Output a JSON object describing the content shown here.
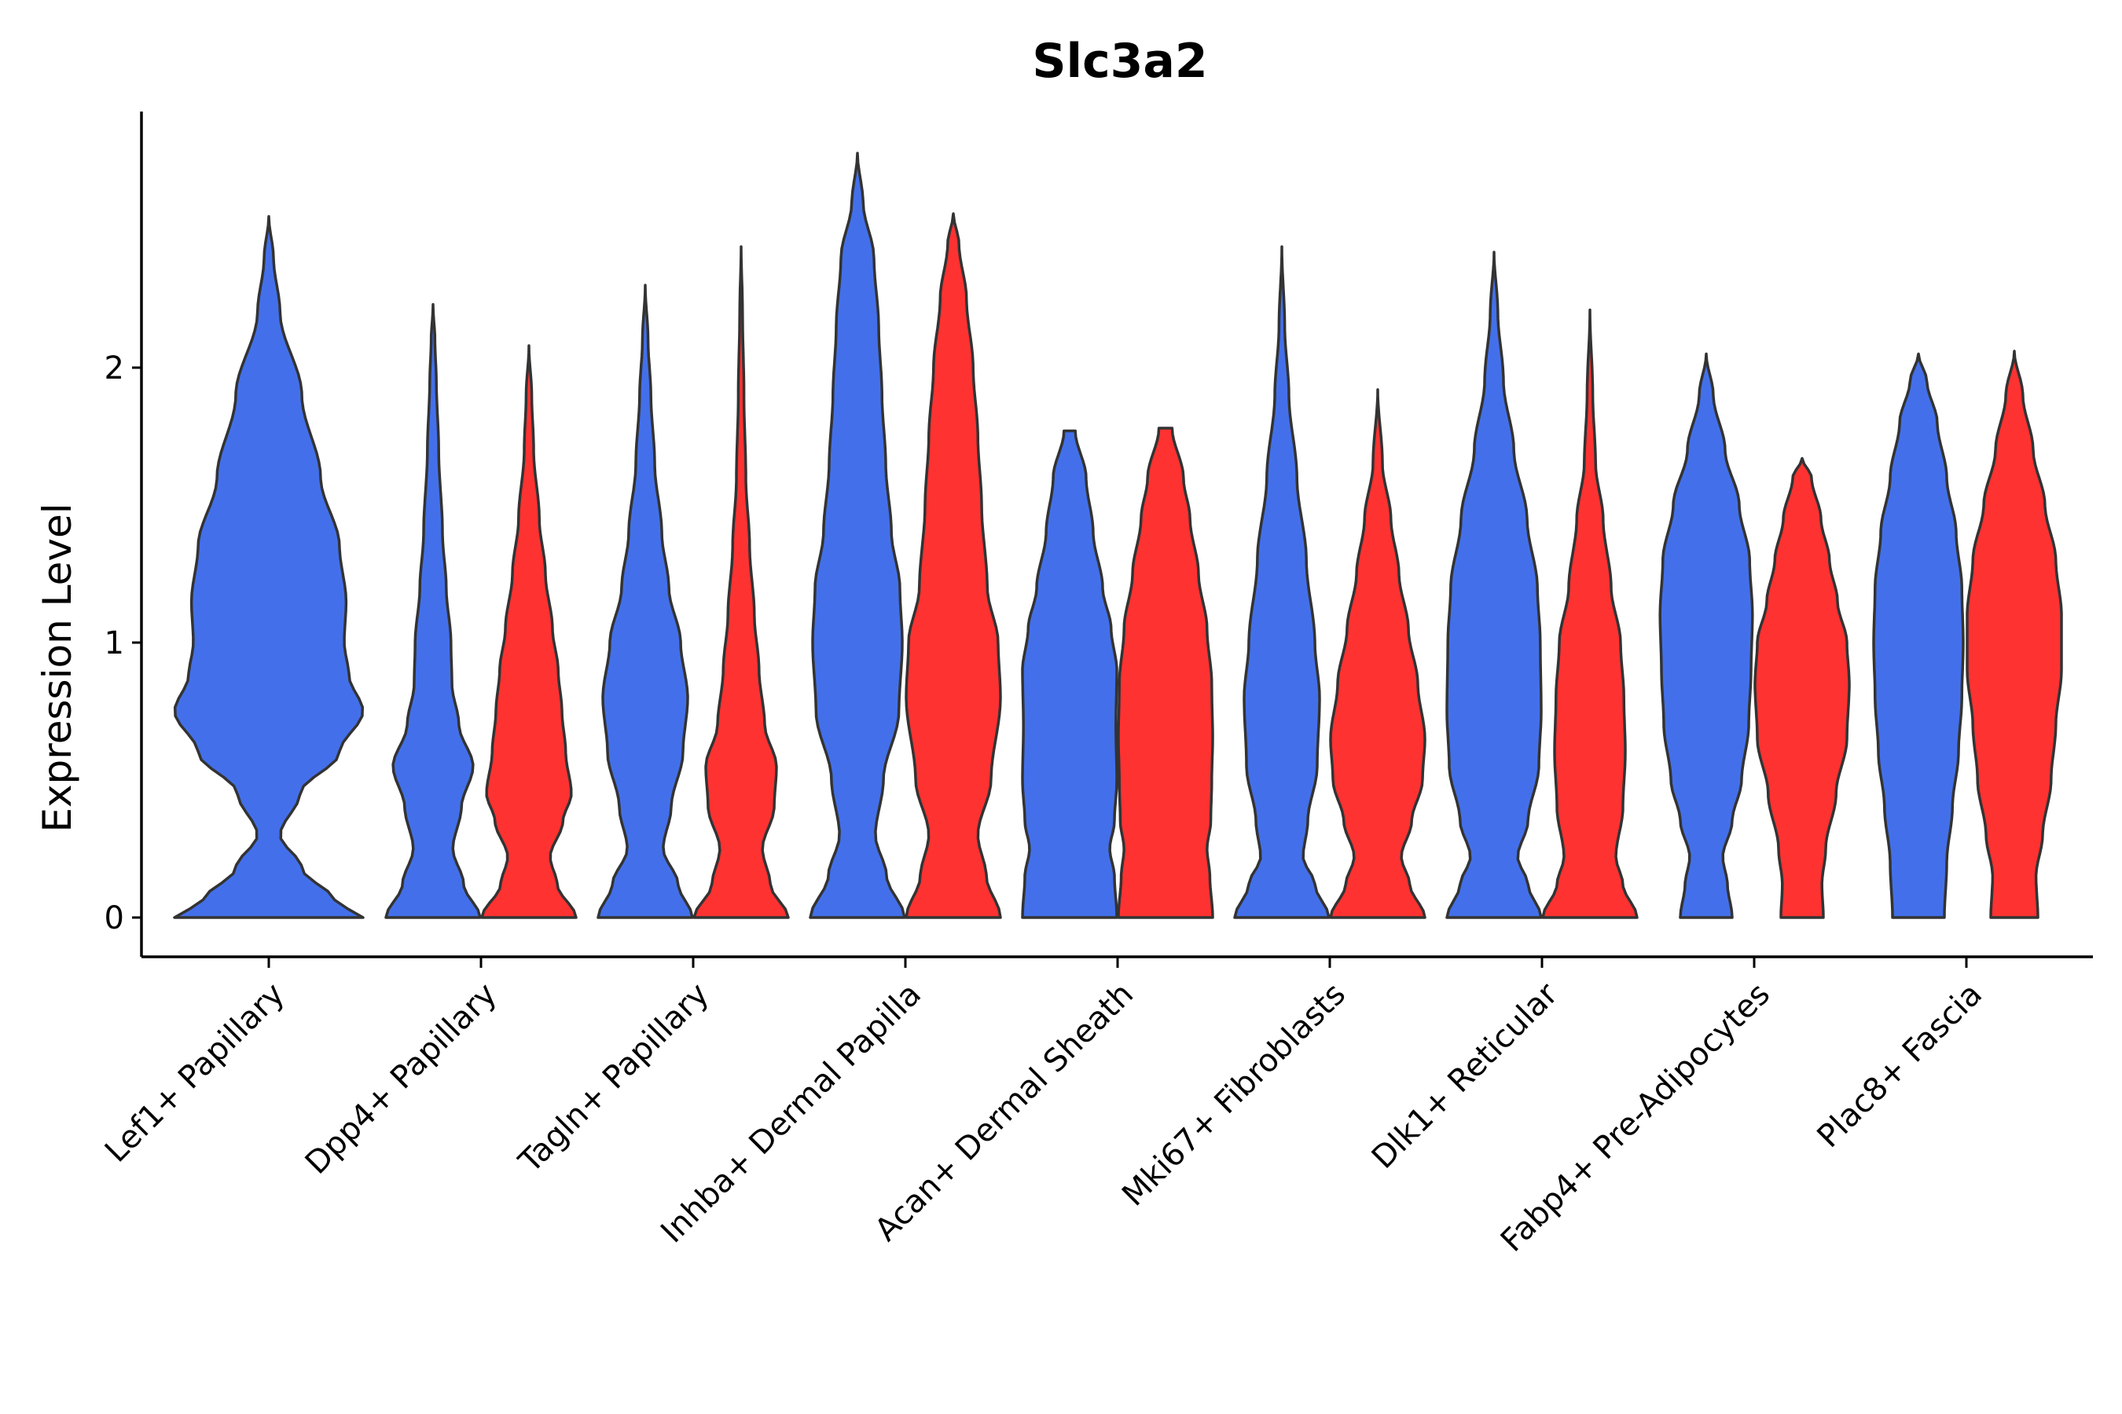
{
  "chart_data": {
    "type": "violin",
    "title": "Slc3a2",
    "xlabel": "",
    "ylabel": "Expression Level",
    "ylim": [
      -0.14,
      2.95
    ],
    "yticks": [
      0,
      1,
      2
    ],
    "legend": "none",
    "colors": {
      "blue": "#4370EA",
      "red": "#FF3232",
      "outline": "#333333"
    },
    "categories": [
      "Lef1+ Papillary",
      "Dpp4+ Papillary",
      "Tagln+ Papillary",
      "Inhba+ Dermal Papilla",
      "Acan+ Dermal Sheath",
      "Mki67+ Fibroblasts",
      "Dlk1+ Reticular",
      "Fabp4+ Pre-Adipocytes",
      "Plac8+ Fascia"
    ],
    "groups": [
      {
        "category_index": 0,
        "color": "blue",
        "max": 2.55,
        "profile": [
          [
            0,
            1.0
          ],
          [
            0.06,
            0.7
          ],
          [
            0.18,
            0.35
          ],
          [
            0.3,
            0.12
          ],
          [
            0.45,
            0.33
          ],
          [
            0.6,
            0.75
          ],
          [
            0.75,
            1.0
          ],
          [
            0.88,
            0.85
          ],
          [
            1.0,
            0.8
          ],
          [
            1.15,
            0.82
          ],
          [
            1.35,
            0.75
          ],
          [
            1.6,
            0.55
          ],
          [
            1.9,
            0.35
          ],
          [
            2.2,
            0.12
          ],
          [
            2.4,
            0.05
          ],
          [
            2.55,
            0.0
          ]
        ]
      },
      {
        "category_index": 1,
        "color": "blue",
        "max": 2.23,
        "profile": [
          [
            0,
            1.0
          ],
          [
            0.12,
            0.65
          ],
          [
            0.25,
            0.42
          ],
          [
            0.4,
            0.6
          ],
          [
            0.55,
            0.85
          ],
          [
            0.7,
            0.55
          ],
          [
            0.85,
            0.4
          ],
          [
            1.0,
            0.38
          ],
          [
            1.2,
            0.28
          ],
          [
            1.4,
            0.2
          ],
          [
            1.7,
            0.12
          ],
          [
            1.95,
            0.07
          ],
          [
            2.1,
            0.04
          ],
          [
            2.23,
            0.0
          ]
        ]
      },
      {
        "category_index": 1,
        "color": "red",
        "max": 2.08,
        "profile": [
          [
            0,
            1.0
          ],
          [
            0.12,
            0.6
          ],
          [
            0.22,
            0.45
          ],
          [
            0.35,
            0.72
          ],
          [
            0.45,
            0.9
          ],
          [
            0.6,
            0.78
          ],
          [
            0.75,
            0.7
          ],
          [
            0.9,
            0.62
          ],
          [
            1.05,
            0.5
          ],
          [
            1.25,
            0.35
          ],
          [
            1.45,
            0.22
          ],
          [
            1.7,
            0.1
          ],
          [
            1.9,
            0.06
          ],
          [
            2.08,
            0.0
          ]
        ]
      },
      {
        "category_index": 2,
        "color": "blue",
        "max": 2.3,
        "profile": [
          [
            0,
            1.0
          ],
          [
            0.12,
            0.7
          ],
          [
            0.25,
            0.38
          ],
          [
            0.4,
            0.55
          ],
          [
            0.6,
            0.8
          ],
          [
            0.8,
            0.9
          ],
          [
            1.0,
            0.75
          ],
          [
            1.2,
            0.5
          ],
          [
            1.4,
            0.35
          ],
          [
            1.65,
            0.2
          ],
          [
            1.9,
            0.12
          ],
          [
            2.1,
            0.06
          ],
          [
            2.3,
            0.0
          ]
        ]
      },
      {
        "category_index": 2,
        "color": "red",
        "max": 2.44,
        "profile": [
          [
            0,
            1.0
          ],
          [
            0.12,
            0.62
          ],
          [
            0.25,
            0.45
          ],
          [
            0.4,
            0.7
          ],
          [
            0.55,
            0.75
          ],
          [
            0.7,
            0.5
          ],
          [
            0.9,
            0.38
          ],
          [
            1.1,
            0.28
          ],
          [
            1.35,
            0.18
          ],
          [
            1.6,
            0.1
          ],
          [
            1.9,
            0.06
          ],
          [
            2.2,
            0.03
          ],
          [
            2.44,
            0.0
          ]
        ]
      },
      {
        "category_index": 3,
        "color": "blue",
        "max": 2.78,
        "profile": [
          [
            0,
            1.0
          ],
          [
            0.15,
            0.62
          ],
          [
            0.3,
            0.38
          ],
          [
            0.5,
            0.55
          ],
          [
            0.75,
            0.88
          ],
          [
            1.0,
            0.95
          ],
          [
            1.2,
            0.9
          ],
          [
            1.4,
            0.72
          ],
          [
            1.65,
            0.6
          ],
          [
            1.9,
            0.52
          ],
          [
            2.15,
            0.45
          ],
          [
            2.4,
            0.35
          ],
          [
            2.6,
            0.12
          ],
          [
            2.78,
            0.0
          ]
        ]
      },
      {
        "category_index": 3,
        "color": "red",
        "max": 2.56,
        "profile": [
          [
            0,
            1.0
          ],
          [
            0.15,
            0.7
          ],
          [
            0.3,
            0.52
          ],
          [
            0.5,
            0.8
          ],
          [
            0.8,
            1.0
          ],
          [
            1.0,
            0.95
          ],
          [
            1.2,
            0.72
          ],
          [
            1.5,
            0.6
          ],
          [
            1.75,
            0.52
          ],
          [
            2.0,
            0.42
          ],
          [
            2.25,
            0.28
          ],
          [
            2.45,
            0.12
          ],
          [
            2.56,
            0.0
          ]
        ]
      },
      {
        "category_index": 4,
        "color": "blue",
        "max": 1.77,
        "profile": [
          [
            0,
            1.0
          ],
          [
            0.15,
            0.95
          ],
          [
            0.25,
            0.85
          ],
          [
            0.35,
            0.95
          ],
          [
            0.5,
            1.0
          ],
          [
            0.7,
            0.98
          ],
          [
            0.9,
            1.0
          ],
          [
            1.05,
            0.88
          ],
          [
            1.2,
            0.7
          ],
          [
            1.4,
            0.5
          ],
          [
            1.6,
            0.35
          ],
          [
            1.77,
            0.12
          ]
        ]
      },
      {
        "category_index": 4,
        "color": "red",
        "max": 1.78,
        "profile": [
          [
            0,
            1.0
          ],
          [
            0.15,
            0.94
          ],
          [
            0.25,
            0.88
          ],
          [
            0.35,
            0.96
          ],
          [
            0.5,
            0.98
          ],
          [
            0.65,
            1.0
          ],
          [
            0.85,
            0.98
          ],
          [
            1.05,
            0.88
          ],
          [
            1.25,
            0.7
          ],
          [
            1.45,
            0.52
          ],
          [
            1.6,
            0.38
          ],
          [
            1.78,
            0.14
          ]
        ]
      },
      {
        "category_index": 5,
        "color": "blue",
        "max": 2.44,
        "profile": [
          [
            0,
            1.0
          ],
          [
            0.12,
            0.7
          ],
          [
            0.22,
            0.45
          ],
          [
            0.35,
            0.55
          ],
          [
            0.55,
            0.75
          ],
          [
            0.8,
            0.8
          ],
          [
            1.0,
            0.7
          ],
          [
            1.3,
            0.52
          ],
          [
            1.6,
            0.32
          ],
          [
            1.9,
            0.15
          ],
          [
            2.15,
            0.06
          ],
          [
            2.44,
            0.0
          ]
        ]
      },
      {
        "category_index": 5,
        "color": "red",
        "max": 1.92,
        "profile": [
          [
            0,
            1.0
          ],
          [
            0.12,
            0.68
          ],
          [
            0.22,
            0.5
          ],
          [
            0.35,
            0.72
          ],
          [
            0.5,
            0.95
          ],
          [
            0.65,
            1.0
          ],
          [
            0.85,
            0.85
          ],
          [
            1.05,
            0.65
          ],
          [
            1.25,
            0.45
          ],
          [
            1.45,
            0.28
          ],
          [
            1.65,
            0.1
          ],
          [
            1.92,
            0.0
          ]
        ]
      },
      {
        "category_index": 6,
        "color": "blue",
        "max": 2.42,
        "profile": [
          [
            0,
            1.0
          ],
          [
            0.12,
            0.72
          ],
          [
            0.22,
            0.5
          ],
          [
            0.35,
            0.72
          ],
          [
            0.55,
            0.95
          ],
          [
            0.75,
            1.0
          ],
          [
            1.0,
            0.98
          ],
          [
            1.2,
            0.92
          ],
          [
            1.45,
            0.7
          ],
          [
            1.7,
            0.42
          ],
          [
            1.95,
            0.2
          ],
          [
            2.2,
            0.08
          ],
          [
            2.42,
            0.0
          ]
        ]
      },
      {
        "category_index": 6,
        "color": "red",
        "max": 2.21,
        "profile": [
          [
            0,
            1.0
          ],
          [
            0.12,
            0.7
          ],
          [
            0.22,
            0.55
          ],
          [
            0.4,
            0.7
          ],
          [
            0.6,
            0.75
          ],
          [
            0.8,
            0.72
          ],
          [
            1.0,
            0.65
          ],
          [
            1.2,
            0.45
          ],
          [
            1.45,
            0.28
          ],
          [
            1.65,
            0.12
          ],
          [
            1.9,
            0.06
          ],
          [
            2.21,
            0.0
          ]
        ]
      },
      {
        "category_index": 7,
        "color": "blue",
        "max": 2.05,
        "profile": [
          [
            0,
            0.55
          ],
          [
            0.12,
            0.45
          ],
          [
            0.22,
            0.35
          ],
          [
            0.35,
            0.55
          ],
          [
            0.5,
            0.75
          ],
          [
            0.7,
            0.9
          ],
          [
            0.9,
            0.95
          ],
          [
            1.1,
            0.98
          ],
          [
            1.3,
            0.92
          ],
          [
            1.5,
            0.7
          ],
          [
            1.7,
            0.4
          ],
          [
            1.9,
            0.15
          ],
          [
            2.05,
            0.0
          ]
        ]
      },
      {
        "category_index": 7,
        "color": "red",
        "max": 1.67,
        "profile": [
          [
            0,
            0.45
          ],
          [
            0.12,
            0.42
          ],
          [
            0.25,
            0.5
          ],
          [
            0.45,
            0.72
          ],
          [
            0.65,
            0.95
          ],
          [
            0.85,
            1.0
          ],
          [
            1.0,
            0.95
          ],
          [
            1.15,
            0.75
          ],
          [
            1.3,
            0.58
          ],
          [
            1.45,
            0.4
          ],
          [
            1.6,
            0.2
          ],
          [
            1.67,
            0.0
          ]
        ]
      },
      {
        "category_index": 8,
        "color": "blue",
        "max": 2.05,
        "profile": [
          [
            0,
            0.55
          ],
          [
            0.2,
            0.6
          ],
          [
            0.4,
            0.72
          ],
          [
            0.6,
            0.85
          ],
          [
            0.8,
            0.92
          ],
          [
            1.0,
            0.95
          ],
          [
            1.2,
            0.92
          ],
          [
            1.4,
            0.8
          ],
          [
            1.6,
            0.6
          ],
          [
            1.8,
            0.4
          ],
          [
            1.95,
            0.18
          ],
          [
            2.05,
            0.0
          ]
        ]
      },
      {
        "category_index": 8,
        "color": "red",
        "max": 2.06,
        "profile": [
          [
            0,
            0.5
          ],
          [
            0.15,
            0.46
          ],
          [
            0.3,
            0.6
          ],
          [
            0.5,
            0.78
          ],
          [
            0.7,
            0.88
          ],
          [
            0.9,
            1.0
          ],
          [
            1.1,
            1.0
          ],
          [
            1.3,
            0.88
          ],
          [
            1.5,
            0.65
          ],
          [
            1.7,
            0.4
          ],
          [
            1.9,
            0.18
          ],
          [
            2.06,
            0.0
          ]
        ]
      }
    ]
  }
}
